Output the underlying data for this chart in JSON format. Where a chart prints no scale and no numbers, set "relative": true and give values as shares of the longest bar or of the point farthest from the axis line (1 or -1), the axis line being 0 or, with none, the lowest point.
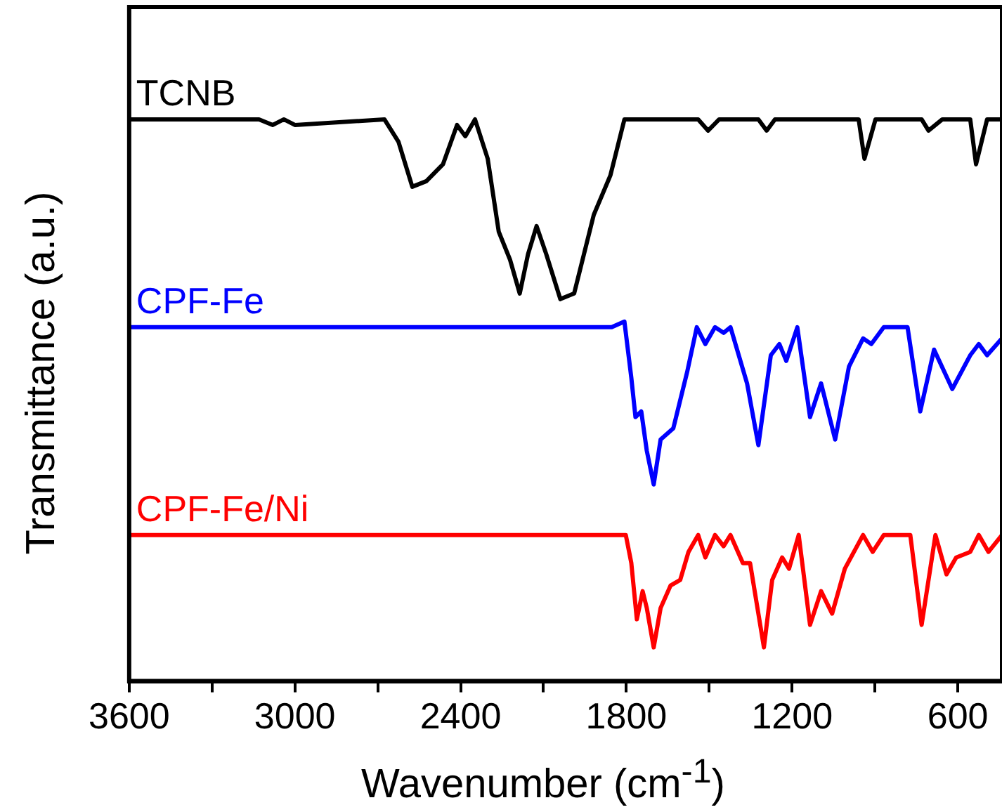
{
  "chart_data": {
    "type": "line",
    "xlabel": "Wavenumber (cm$^{-1}$)",
    "ylabel": "Transmittance (a.u.)",
    "relative": true,
    "legend": false,
    "grid": false,
    "marker": "none",
    "line_style": "solid",
    "xlim": [
      3600,
      440
    ],
    "xticks": [
      3600,
      {
        "value": 3300,
        "label": null
      },
      3000,
      {
        "value": 2700,
        "label": null
      },
      2400,
      {
        "value": 2100,
        "label": null
      },
      1800,
      {
        "value": 1500,
        "label": null
      },
      1200,
      {
        "value": 900,
        "label": null
      },
      600
    ],
    "series": [
      {
        "name": "TCNB",
        "color": "#000000",
        "x": [
          3595,
          3130,
          3080,
          3040,
          3000,
          2676,
          2625,
          2575,
          2524,
          2464,
          2413,
          2383,
          2348,
          2302,
          2262,
          2221,
          2186,
          2156,
          2125,
          2090,
          2039,
          1989,
          1918,
          1858,
          1807,
          1540,
          1504,
          1464,
          1322,
          1292,
          1262,
          959,
          938,
          898,
          731,
          706,
          656,
          555,
          534,
          494,
          440
        ],
        "values": [
          1.0,
          1.0,
          0.99,
          1.0,
          0.99,
          1.0,
          0.96,
          0.88,
          0.89,
          0.92,
          0.99,
          0.97,
          1.0,
          0.93,
          0.8,
          0.75,
          0.69,
          0.76,
          0.81,
          0.76,
          0.68,
          0.69,
          0.83,
          0.9,
          1.0,
          1.0,
          0.98,
          1.0,
          1.0,
          0.98,
          1.0,
          1.0,
          0.93,
          1.0,
          1.0,
          0.98,
          1.0,
          1.0,
          0.92,
          1.0,
          1.0
        ]
      },
      {
        "name": "CPF-Fe",
        "color": "#0000ff",
        "x": [
          3595,
          2019,
          1853,
          1807,
          1782,
          1767,
          1746,
          1726,
          1701,
          1676,
          1630,
          1580,
          1545,
          1514,
          1479,
          1448,
          1423,
          1363,
          1322,
          1277,
          1246,
          1221,
          1181,
          1135,
          1095,
          1044,
          994,
          943,
          913,
          868,
          782,
          736,
          686,
          620,
          555,
          524,
          494,
          440
        ],
        "values": [
          0.63,
          0.63,
          0.63,
          0.64,
          0.54,
          0.47,
          0.48,
          0.41,
          0.35,
          0.43,
          0.45,
          0.55,
          0.63,
          0.6,
          0.63,
          0.62,
          0.63,
          0.53,
          0.42,
          0.58,
          0.6,
          0.57,
          0.63,
          0.47,
          0.53,
          0.43,
          0.56,
          0.61,
          0.6,
          0.63,
          0.63,
          0.48,
          0.59,
          0.52,
          0.58,
          0.6,
          0.58,
          0.61
        ]
      },
      {
        "name": "CPF-Fe/Ni",
        "color": "#ff0000",
        "x": [
          3595,
          2019,
          1853,
          1802,
          1782,
          1762,
          1741,
          1726,
          1701,
          1676,
          1640,
          1605,
          1575,
          1540,
          1514,
          1479,
          1448,
          1423,
          1378,
          1352,
          1302,
          1272,
          1236,
          1211,
          1176,
          1135,
          1095,
          1055,
          1009,
          943,
          908,
          868,
          772,
          731,
          681,
          641,
          606,
          555,
          524,
          489,
          440
        ],
        "values": [
          0.26,
          0.26,
          0.26,
          0.26,
          0.21,
          0.11,
          0.16,
          0.13,
          0.06,
          0.13,
          0.17,
          0.18,
          0.23,
          0.26,
          0.22,
          0.26,
          0.24,
          0.26,
          0.21,
          0.21,
          0.06,
          0.18,
          0.22,
          0.2,
          0.26,
          0.1,
          0.16,
          0.12,
          0.2,
          0.26,
          0.23,
          0.26,
          0.26,
          0.1,
          0.26,
          0.19,
          0.22,
          0.23,
          0.26,
          0.23,
          0.26
        ]
      }
    ]
  }
}
